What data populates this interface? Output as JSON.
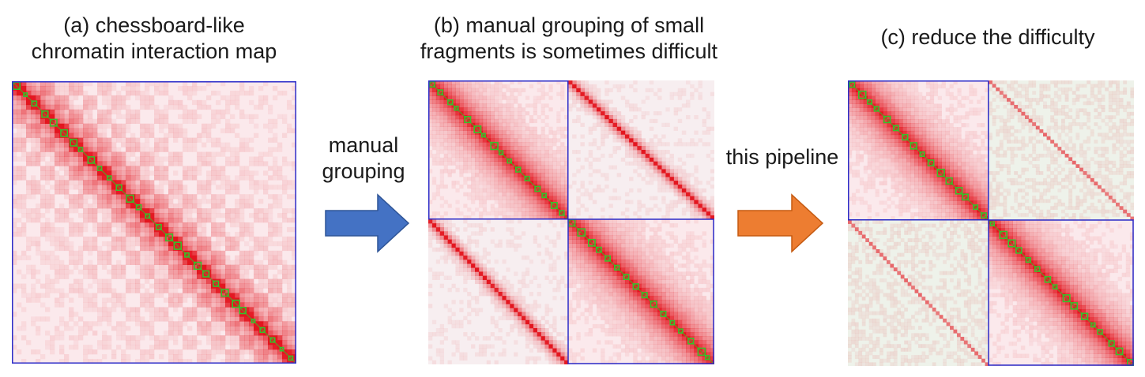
{
  "panels": [
    {
      "id": "a",
      "caption": "(a) chessboard-like\nchromatin interaction map"
    },
    {
      "id": "b",
      "caption": "(b) manual grouping of small\nfragments is sometimes difficult"
    },
    {
      "id": "c",
      "caption": "(c) reduce the difficulty"
    }
  ],
  "arrows": [
    {
      "label": "manual\ngrouping",
      "color": "#4472C4"
    },
    {
      "label": "this pipeline",
      "color": "#ED7D31"
    }
  ],
  "colors": {
    "map_red": "#e3161f",
    "map_pale": "#fbe9ec",
    "diagonal_green": "#35c22c",
    "box_blue": "#2b2bc8",
    "background_grey": "#eef2ea"
  }
}
